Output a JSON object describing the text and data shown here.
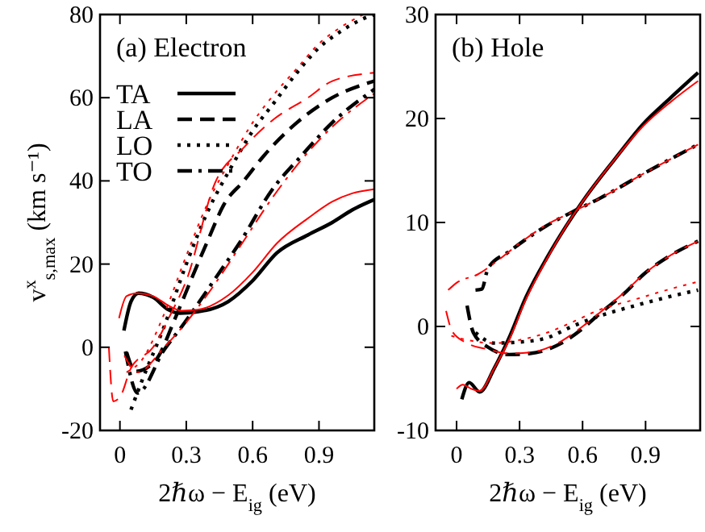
{
  "chart_data": [
    {
      "type": "line",
      "annotations": [
        "(a) Electron"
      ],
      "xlabel": "2ℏω − E$_{ig}$ (eV)",
      "ylabel": "v$^{x}$$_{s,max}$ (km s⁻¹)",
      "xlim": [
        -0.09,
        1.15
      ],
      "ylim": [
        -20,
        80
      ],
      "xticks": [
        0,
        0.3,
        0.6,
        0.9
      ],
      "yticks": [
        -20,
        0,
        20,
        40,
        60,
        80
      ],
      "legend": "top left",
      "grid": false,
      "series": [
        {
          "name": "TA",
          "color": "#000000",
          "line_style": "solid",
          "x": [
            0.018,
            0.05,
            0.084,
            0.15,
            0.22,
            0.27,
            0.35,
            0.49,
            0.6,
            0.71,
            0.85,
            0.96,
            1.05,
            1.15
          ],
          "values": [
            4,
            11,
            13,
            12,
            9,
            8.2,
            8.5,
            11,
            16,
            22.7,
            27,
            30,
            33,
            35.5
          ]
        },
        {
          "name": "LA",
          "color": "#000000",
          "line_style": "dashed",
          "x": [
            0.03,
            0.07,
            0.16,
            0.25,
            0.32,
            0.4,
            0.47,
            0.56,
            0.65,
            0.8,
            0.96,
            1.15
          ],
          "values": [
            -1.2,
            -5.8,
            -3.2,
            7,
            16,
            26,
            34.3,
            40,
            46,
            54,
            60,
            64
          ]
        },
        {
          "name": "LO",
          "color": "#000000",
          "line_style": "dotted",
          "x": [
            0.05,
            0.1,
            0.2,
            0.3,
            0.4,
            0.5,
            0.6,
            0.7,
            0.8,
            0.9,
            1.0,
            1.1,
            1.15
          ],
          "values": [
            -15,
            -8,
            5,
            20,
            33,
            43,
            52,
            59,
            66,
            72,
            76,
            79,
            80
          ]
        },
        {
          "name": "TO",
          "color": "#000000",
          "line_style": "dashdot",
          "x": [
            0.025,
            0.08,
            0.2,
            0.28,
            0.36,
            0.45,
            0.54,
            0.69,
            0.82,
            0.96,
            1.15
          ],
          "values": [
            -1,
            -11,
            -0.6,
            5,
            11,
            18,
            25,
            38,
            46,
            54,
            62
          ]
        },
        {
          "color": "#ff0000",
          "line_style": "solid",
          "x": [
            -0.004,
            0.03,
            0.08,
            0.15,
            0.22,
            0.28,
            0.35,
            0.49,
            0.6,
            0.71,
            0.85,
            0.96,
            1.05,
            1.15
          ],
          "values": [
            7,
            12.3,
            13,
            12.3,
            10,
            8.8,
            9,
            12.5,
            18,
            25,
            31,
            35,
            37,
            38
          ]
        },
        {
          "color": "#ff0000",
          "line_style": "dashed",
          "x": [
            -0.05,
            -0.03,
            0,
            0.05,
            0.15,
            0.23,
            0.3,
            0.43,
            0.56,
            0.7,
            0.85,
            0.96,
            1.15
          ],
          "values": [
            0,
            -13,
            -12,
            -5,
            0,
            8,
            16,
            39.5,
            48,
            55,
            60,
            64,
            66
          ]
        },
        {
          "color": "#ff0000",
          "line_style": "dotted",
          "x": [
            0.03,
            0.1,
            0.2,
            0.3,
            0.4,
            0.5,
            0.6,
            0.7,
            0.8,
            0.9,
            1.0,
            1.1
          ],
          "values": [
            -6,
            -3,
            8,
            22,
            35,
            45,
            54,
            61,
            67,
            73,
            77,
            80
          ]
        },
        {
          "color": "#ff0000",
          "line_style": "dashdot",
          "x": [
            0.02,
            0.08,
            0.2,
            0.3,
            0.4,
            0.54,
            0.69,
            0.82,
            0.96,
            1.15
          ],
          "values": [
            -2,
            -6,
            0,
            6,
            13,
            24,
            36,
            45,
            53,
            61
          ]
        }
      ]
    },
    {
      "type": "line",
      "annotations": [
        "(b) Hole"
      ],
      "xlabel": "2ℏω − E$_{ig}$ (eV)",
      "xlim": [
        -0.1,
        1.16
      ],
      "ylim": [
        -10,
        30
      ],
      "xticks": [
        0,
        0.3,
        0.6,
        0.9
      ],
      "yticks": [
        -10,
        0,
        10,
        20,
        30
      ],
      "legend": false,
      "grid": false,
      "series": [
        {
          "color": "#000000",
          "line_style": "solid",
          "x": [
            0.025,
            0.06,
            0.11,
            0.18,
            0.25,
            0.33,
            0.43,
            0.52,
            0.61,
            0.75,
            0.89,
            1.02,
            1.15
          ],
          "values": [
            -7,
            -5.4,
            -6.3,
            -4,
            -1.1,
            2.8,
            6.6,
            9.6,
            12.3,
            16,
            19.5,
            22,
            24.4
          ]
        },
        {
          "color": "#000000",
          "line_style": "dashed",
          "x": [
            0.05,
            0.08,
            0.15,
            0.25,
            0.35,
            0.5,
            0.6,
            0.68,
            0.8,
            0.89,
            1.0,
            1.15
          ],
          "values": [
            2,
            -0.6,
            -2,
            -2.7,
            -2.6,
            -1.6,
            -0.2,
            1.2,
            3.2,
            5,
            6.6,
            8.2
          ]
        },
        {
          "color": "#000000",
          "line_style": "dotted",
          "x": [
            0.09,
            0.18,
            0.3,
            0.43,
            0.55,
            0.68,
            0.85,
            1.0,
            1.15
          ],
          "values": [
            -0.6,
            -1.6,
            -1.5,
            -1.1,
            0,
            1,
            2,
            2.8,
            3.5
          ]
        },
        {
          "color": "#000000",
          "line_style": "dashdot",
          "x": [
            0.09,
            0.12,
            0.15,
            0.25,
            0.43,
            0.55,
            0.68,
            0.9,
            1.15
          ],
          "values": [
            3.5,
            3.6,
            5.6,
            7.2,
            9.7,
            11,
            12.3,
            14.8,
            17.5
          ]
        },
        {
          "color": "#ff0000",
          "line_style": "solid",
          "x": [
            0,
            0.03,
            0.07,
            0.11,
            0.18,
            0.25,
            0.33,
            0.43,
            0.52,
            0.61,
            0.75,
            0.89,
            1.02,
            1.15
          ],
          "values": [
            -6,
            -5.6,
            -6,
            -6.2,
            -4,
            -1.3,
            2.6,
            6.5,
            9.6,
            12.3,
            16,
            19.3,
            21.6,
            23.6
          ]
        },
        {
          "color": "#ff0000",
          "line_style": "dashed",
          "x": [
            -0.05,
            -0.02,
            0.05,
            0.15,
            0.25,
            0.35,
            0.5,
            0.6,
            0.68,
            0.8,
            0.89,
            1.0,
            1.15
          ],
          "values": [
            1.5,
            -0.5,
            -1.6,
            -2.2,
            -2.6,
            -2.5,
            -1.4,
            0,
            1.3,
            3.3,
            5,
            6.6,
            8.2
          ]
        },
        {
          "color": "#ff0000",
          "line_style": "dotted",
          "x": [
            -0.025,
            0.05,
            0.18,
            0.3,
            0.43,
            0.55,
            0.68,
            0.85,
            1.0,
            1.15
          ],
          "values": [
            -0.9,
            -1.3,
            -1.6,
            -1.3,
            -0.6,
            0.4,
            1.6,
            2.6,
            3.5,
            4.3
          ]
        },
        {
          "color": "#ff0000",
          "line_style": "dashdot",
          "x": [
            -0.04,
            0,
            0.1,
            0.2,
            0.3,
            0.43,
            0.55,
            0.68,
            0.9,
            1.15
          ],
          "values": [
            3.5,
            4.2,
            5,
            6.4,
            8,
            9.8,
            11,
            12.3,
            14.8,
            17.5
          ]
        }
      ]
    }
  ]
}
